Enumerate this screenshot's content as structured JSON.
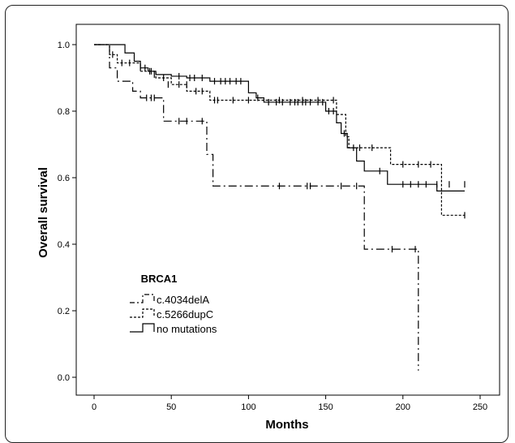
{
  "chart_data": {
    "type": "line",
    "subtype": "kaplan-meier step curves with censor ticks",
    "xlabel": "Months",
    "ylabel": "Overall survival",
    "xlim": [
      0,
      250
    ],
    "ylim": [
      0.0,
      1.0
    ],
    "x_ticks": [
      0,
      50,
      100,
      150,
      200,
      250
    ],
    "y_ticks": [
      0.0,
      0.2,
      0.4,
      0.6,
      0.8,
      1.0
    ],
    "y_tick_labels": [
      "0.0",
      "0.2",
      "0.4",
      "0.6",
      "0.8",
      "1.0"
    ],
    "grid": false,
    "legend": {
      "title": "BRCA1",
      "placement": "lower-left"
    },
    "series": [
      {
        "name": "c.4034delA",
        "style": "dash-dot",
        "color": "#000000",
        "steps": [
          [
            0,
            1.0
          ],
          [
            10,
            0.93
          ],
          [
            15,
            0.89
          ],
          [
            25,
            0.86
          ],
          [
            30,
            0.84
          ],
          [
            45,
            0.77
          ],
          [
            73,
            0.67
          ],
          [
            77,
            0.575
          ],
          [
            175,
            0.385
          ],
          [
            210,
            0.02
          ]
        ],
        "censored": [
          [
            34,
            0.84
          ],
          [
            37,
            0.84
          ],
          [
            39,
            0.84
          ],
          [
            55,
            0.77
          ],
          [
            60,
            0.77
          ],
          [
            70,
            0.77
          ],
          [
            120,
            0.575
          ],
          [
            138,
            0.575
          ],
          [
            140,
            0.575
          ],
          [
            160,
            0.575
          ],
          [
            170,
            0.575
          ],
          [
            193,
            0.385
          ],
          [
            208,
            0.385
          ]
        ]
      },
      {
        "name": "c.5266dupC",
        "style": "dotted",
        "color": "#000000",
        "steps": [
          [
            0,
            1.0
          ],
          [
            10,
            0.97
          ],
          [
            15,
            0.945
          ],
          [
            30,
            0.92
          ],
          [
            40,
            0.9
          ],
          [
            50,
            0.88
          ],
          [
            60,
            0.86
          ],
          [
            75,
            0.833
          ],
          [
            157,
            0.79
          ],
          [
            163,
            0.723
          ],
          [
            165,
            0.69
          ],
          [
            192,
            0.64
          ],
          [
            225,
            0.487
          ],
          [
            240,
            0.487
          ]
        ],
        "censored": [
          [
            12,
            0.97
          ],
          [
            18,
            0.945
          ],
          [
            23,
            0.945
          ],
          [
            37,
            0.92
          ],
          [
            45,
            0.9
          ],
          [
            48,
            0.88
          ],
          [
            55,
            0.88
          ],
          [
            60,
            0.88
          ],
          [
            66,
            0.86
          ],
          [
            70,
            0.86
          ],
          [
            78,
            0.833
          ],
          [
            80,
            0.833
          ],
          [
            90,
            0.833
          ],
          [
            100,
            0.833
          ],
          [
            120,
            0.833
          ],
          [
            135,
            0.833
          ],
          [
            145,
            0.833
          ],
          [
            155,
            0.833
          ],
          [
            168,
            0.69
          ],
          [
            172,
            0.69
          ],
          [
            180,
            0.69
          ],
          [
            200,
            0.64
          ],
          [
            210,
            0.64
          ],
          [
            218,
            0.64
          ],
          [
            240,
            0.487
          ]
        ]
      },
      {
        "name": "no mutations",
        "style": "solid",
        "color": "#000000",
        "steps": [
          [
            0,
            1.0
          ],
          [
            20,
            0.975
          ],
          [
            26,
            0.95
          ],
          [
            30,
            0.93
          ],
          [
            35,
            0.92
          ],
          [
            40,
            0.91
          ],
          [
            50,
            0.905
          ],
          [
            60,
            0.9
          ],
          [
            75,
            0.89
          ],
          [
            100,
            0.855
          ],
          [
            105,
            0.84
          ],
          [
            110,
            0.827
          ],
          [
            150,
            0.8
          ],
          [
            157,
            0.765
          ],
          [
            160,
            0.733
          ],
          [
            164,
            0.69
          ],
          [
            170,
            0.65
          ],
          [
            175,
            0.62
          ],
          [
            190,
            0.58
          ],
          [
            220,
            0.58
          ],
          [
            222,
            0.56
          ],
          [
            240,
            0.56
          ]
        ],
        "censored": [
          [
            30,
            0.93
          ],
          [
            33,
            0.93
          ],
          [
            36,
            0.92
          ],
          [
            39,
            0.91
          ],
          [
            55,
            0.905
          ],
          [
            62,
            0.9
          ],
          [
            65,
            0.9
          ],
          [
            70,
            0.9
          ],
          [
            78,
            0.89
          ],
          [
            82,
            0.89
          ],
          [
            85,
            0.89
          ],
          [
            88,
            0.89
          ],
          [
            92,
            0.89
          ],
          [
            95,
            0.89
          ],
          [
            106,
            0.84
          ],
          [
            113,
            0.827
          ],
          [
            118,
            0.827
          ],
          [
            122,
            0.827
          ],
          [
            127,
            0.827
          ],
          [
            130,
            0.827
          ],
          [
            132,
            0.827
          ],
          [
            135,
            0.827
          ],
          [
            137,
            0.827
          ],
          [
            140,
            0.827
          ],
          [
            145,
            0.827
          ],
          [
            148,
            0.827
          ],
          [
            152,
            0.8
          ],
          [
            155,
            0.8
          ],
          [
            162,
            0.733
          ],
          [
            185,
            0.62
          ],
          [
            200,
            0.58
          ],
          [
            205,
            0.58
          ],
          [
            210,
            0.58
          ],
          [
            215,
            0.58
          ],
          [
            222,
            0.58
          ],
          [
            230,
            0.58
          ],
          [
            240,
            0.58
          ]
        ]
      }
    ]
  }
}
